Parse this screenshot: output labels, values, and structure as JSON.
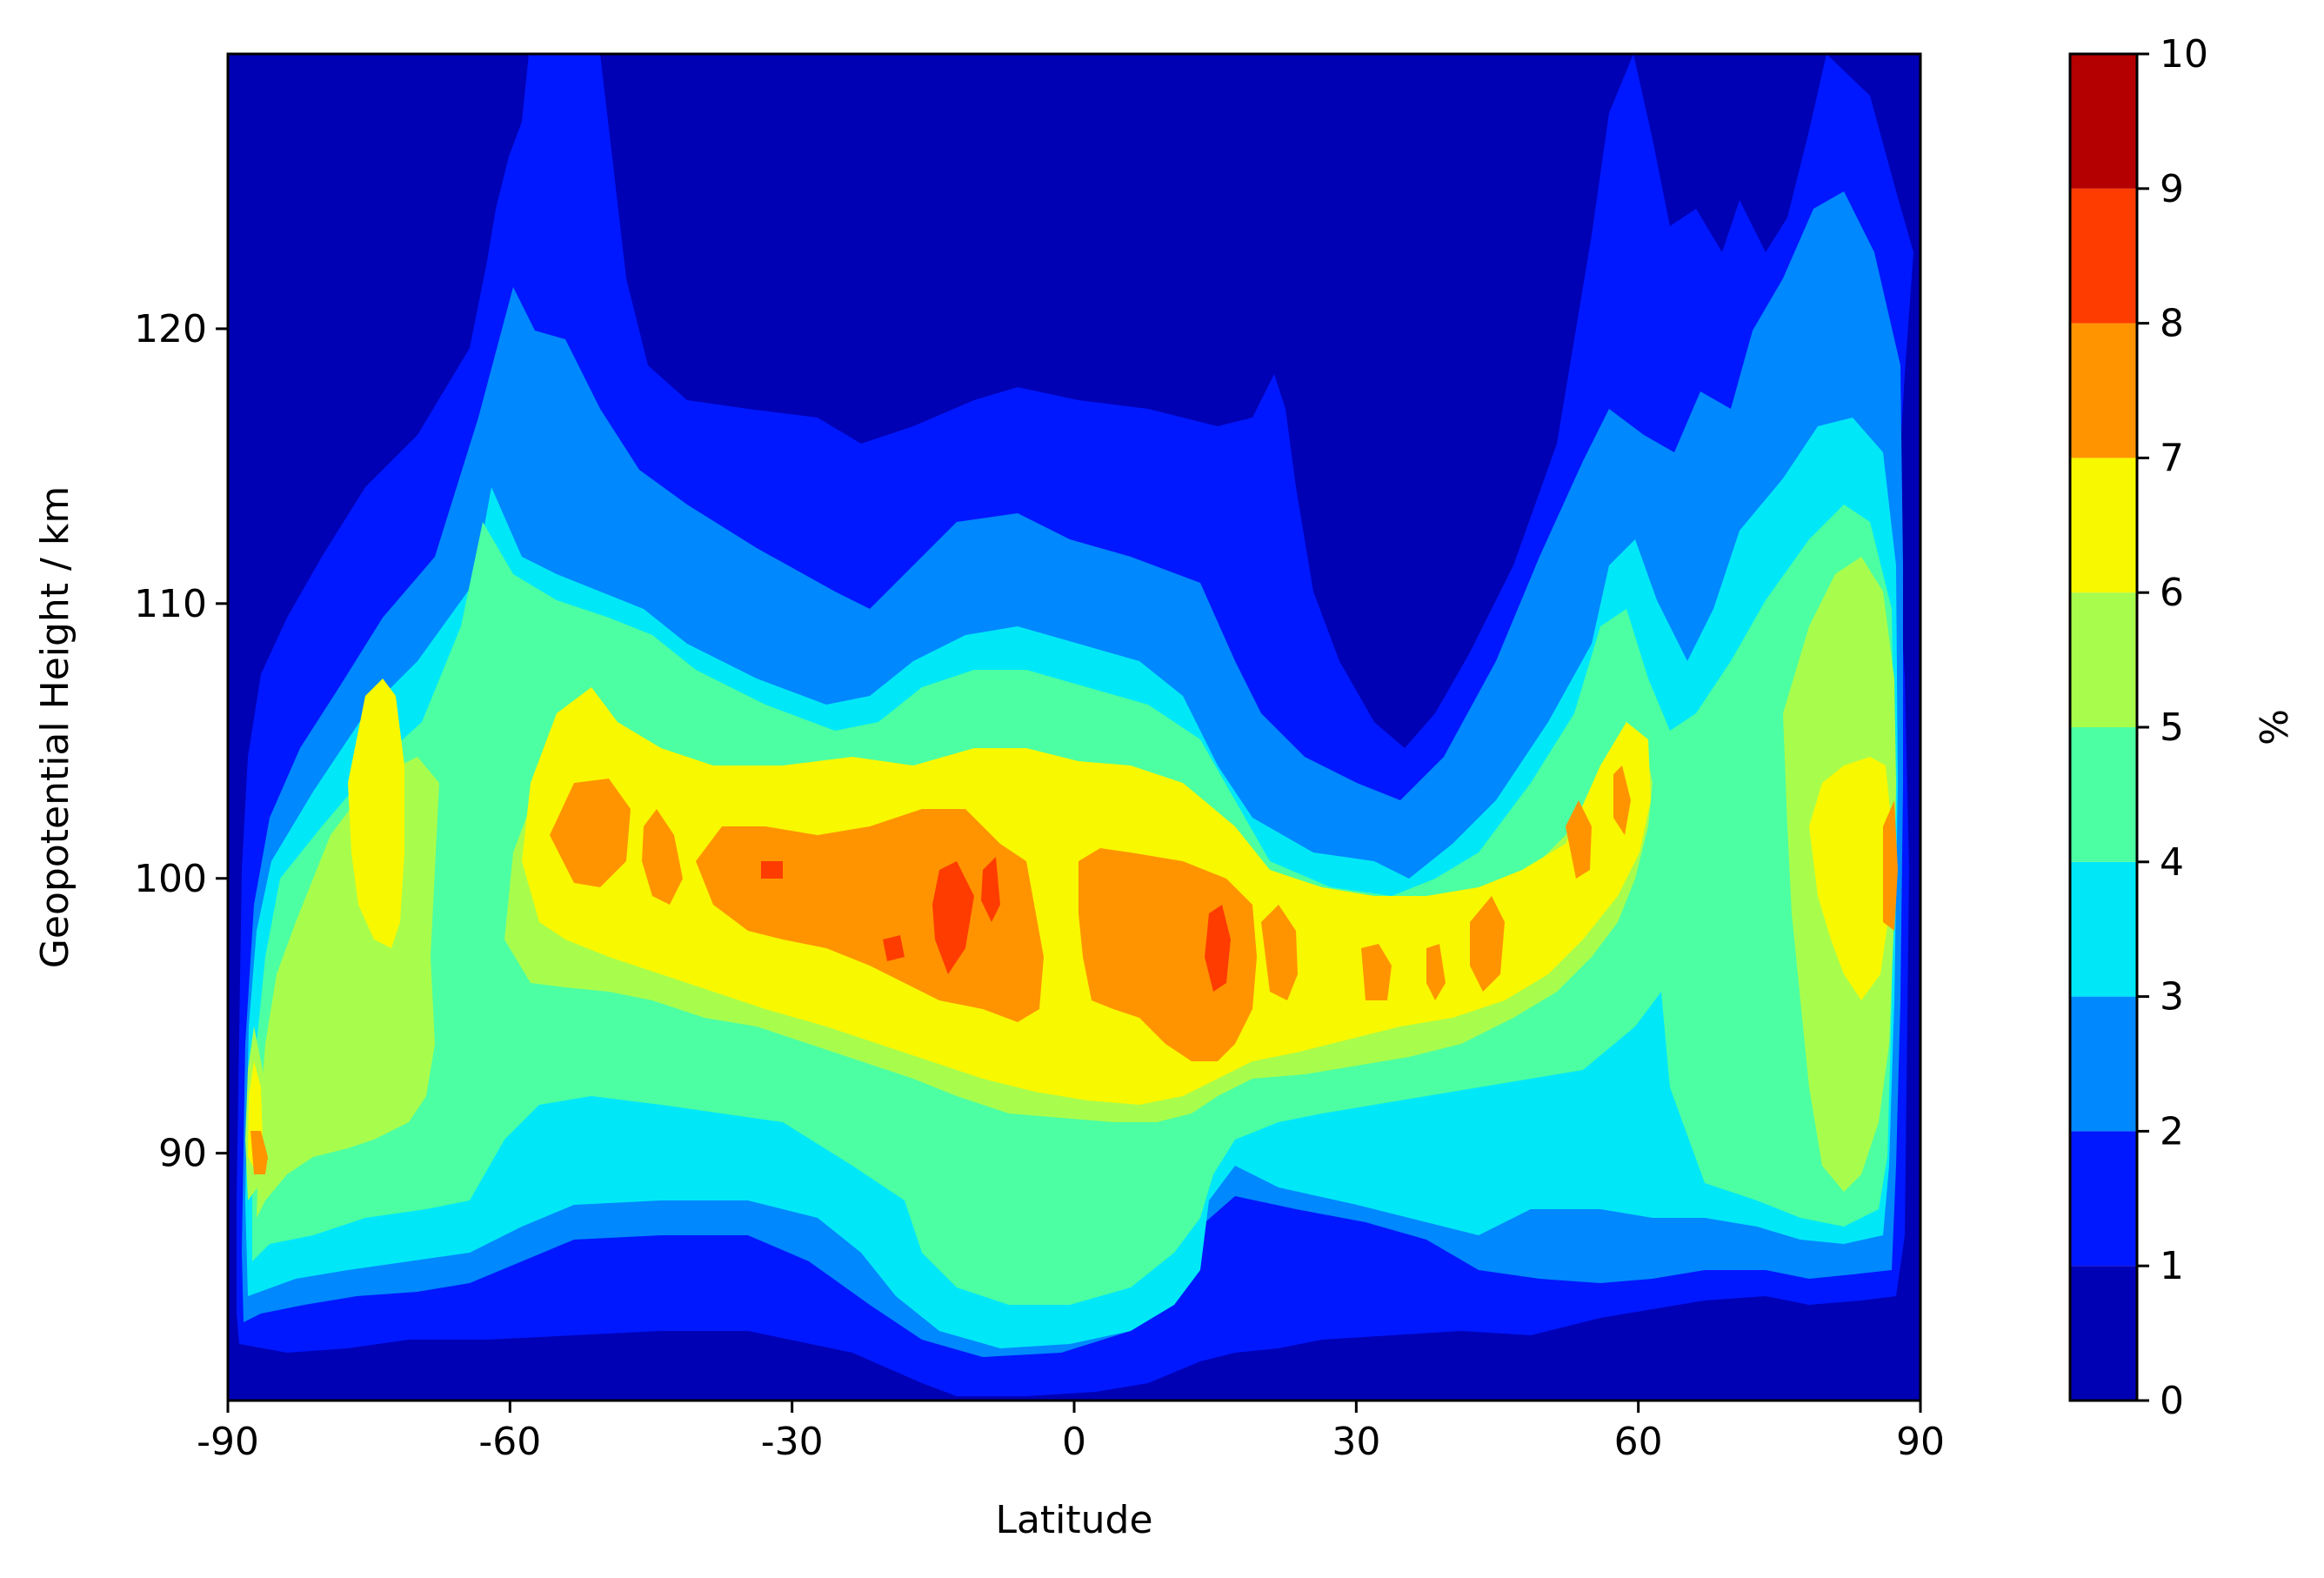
{
  "chart_data": {
    "type": "heatmap",
    "subtype": "filled-contour",
    "title": "",
    "xlabel": "Latitude",
    "ylabel": "Geopotential Height / km",
    "xlim": [
      -90,
      90
    ],
    "ylim": [
      81,
      130
    ],
    "xticks": [
      -90,
      -60,
      -30,
      0,
      30,
      60,
      90
    ],
    "yticks": [
      90,
      100,
      110,
      120
    ],
    "colorbar": {
      "label": "%",
      "ticks": [
        0,
        1,
        2,
        3,
        4,
        5,
        6,
        7,
        8,
        9,
        10
      ],
      "levels": [
        0,
        1,
        2,
        3,
        4,
        5,
        6,
        7,
        8,
        9,
        10
      ],
      "colors": [
        "#0000b5",
        "#0018ff",
        "#0088ff",
        "#00e8f8",
        "#4cffa2",
        "#a8fd4c",
        "#f8f800",
        "#ff9400",
        "#ff3c00",
        "#b40000"
      ]
    },
    "grid": false,
    "features": [
      {
        "x": [
          -90,
          90
        ],
        "y": [
          81,
          130
        ],
        "level": 0
      },
      {
        "x": [
          -88,
          -65,
          -55,
          -40,
          -25,
          -10,
          5,
          20,
          35,
          55,
          65,
          80,
          89
        ],
        "y": [
          84,
          85,
          84,
          86,
          87,
          84,
          84,
          86,
          88,
          88,
          86,
          85,
          86
        ],
        "level": 1
      },
      {
        "x": [
          -88,
          -70,
          -50,
          -30,
          -10,
          10,
          25,
          40,
          60,
          75,
          89
        ],
        "y": [
          88,
          92,
          93,
          94,
          88,
          87,
          91,
          94,
          93,
          91,
          88
        ],
        "level": 2
      },
      {
        "x": [
          -85,
          -72,
          -60,
          -45,
          -30,
          -10,
          10,
          30,
          50,
          65,
          80,
          88
        ],
        "y": [
          97,
          104,
          107,
          108,
          104,
          100,
          97,
          97,
          100,
          105,
          110,
          112
        ],
        "level": 3
      },
      {
        "x": [
          -87,
          -75,
          -60,
          -40,
          -20,
          0,
          20,
          35,
          55,
          62,
          80,
          88
        ],
        "y": [
          86,
          100,
          103,
          104,
          101,
          98,
          97,
          97,
          101,
          103,
          104,
          105
        ],
        "level": 5
      },
      {
        "x": [
          -88,
          -75,
          -55,
          -40,
          -25,
          -5,
          10,
          20,
          35,
          50,
          60,
          83,
          88
        ],
        "y": [
          89,
          101,
          103,
          103,
          100,
          98,
          97,
          97,
          97,
          99,
          101,
          100,
          100
        ],
        "level": 6
      },
      {
        "x": [
          -52,
          -45,
          -35,
          -20,
          -10,
          0,
          10,
          17,
          45,
          55,
          58,
          88
        ],
        "y": [
          102,
          101,
          99,
          98,
          97,
          97,
          97,
          96,
          97,
          100,
          101,
          100
        ],
        "level": 7
      },
      {
        "x": [
          -33,
          -20,
          -12,
          7,
          15
        ],
        "y": [
          100,
          97,
          97,
          96,
          96
        ],
        "level": 8
      }
    ]
  }
}
